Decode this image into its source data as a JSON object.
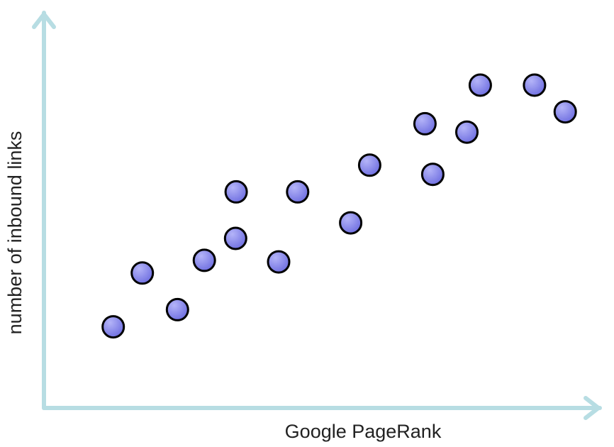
{
  "chart_data": {
    "type": "scatter",
    "title": "",
    "xlabel": "Google PageRank",
    "ylabel": "number of inbound links",
    "xlim": [
      0,
      100
    ],
    "ylim": [
      0,
      100
    ],
    "grid": false,
    "axis_color": "#b7dde3",
    "point_fill": "#6e6ee0",
    "point_stroke": "#000000",
    "series": [
      {
        "x": [
          12.4,
          17.6,
          23.9,
          28.7,
          34.3,
          34.4,
          42.0,
          45.4,
          54.9,
          58.3,
          68.2,
          69.6,
          75.7,
          78.1,
          87.8,
          93.3
        ],
        "y": [
          20.4,
          33.9,
          24.7,
          37.1,
          42.6,
          54.3,
          36.7,
          54.3,
          46.5,
          61.0,
          71.4,
          58.7,
          69.3,
          81.1,
          81.1,
          74.4
        ]
      }
    ]
  }
}
